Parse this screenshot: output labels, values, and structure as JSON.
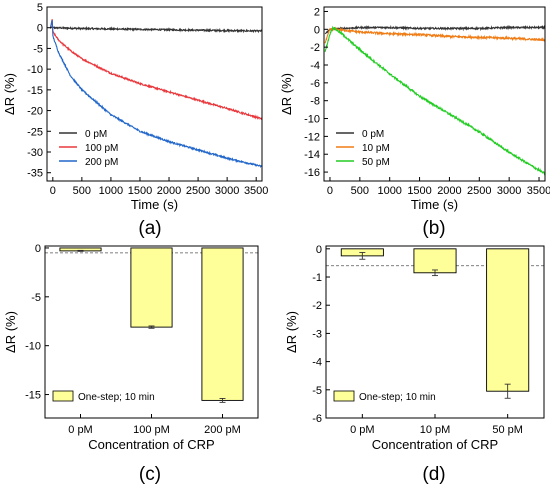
{
  "chart_data": [
    {
      "id": "a",
      "type": "line",
      "panel_label": "(a)",
      "xlabel": "Time (s)",
      "ylabel": "ΔR (%)",
      "xlim": [
        -100,
        3600
      ],
      "ylim": [
        -37,
        5
      ],
      "xticks": [
        0,
        500,
        1000,
        1500,
        2000,
        2500,
        3000,
        3500
      ],
      "yticks": [
        5,
        0,
        -5,
        -10,
        -15,
        -20,
        -25,
        -30,
        -35
      ],
      "legend_position": "bottom-left",
      "series": [
        {
          "name": "0 pM",
          "color": "#333333",
          "x": [
            -40,
            0,
            500,
            1000,
            1500,
            2000,
            2500,
            3000,
            3600
          ],
          "y": [
            0,
            0,
            -0.2,
            -0.3,
            -0.4,
            -0.5,
            -0.6,
            -0.7,
            -0.8
          ]
        },
        {
          "name": "100 pM",
          "color": "#e8383d",
          "x": [
            -40,
            -10,
            0,
            100,
            300,
            500,
            1000,
            1500,
            2000,
            2500,
            3000,
            3600
          ],
          "y": [
            0,
            2,
            -1,
            -3,
            -5.5,
            -7.5,
            -11,
            -13.5,
            -15.5,
            -17.5,
            -19.5,
            -22
          ]
        },
        {
          "name": "200 pM",
          "color": "#2166c9",
          "x": [
            -40,
            -10,
            0,
            100,
            300,
            500,
            1000,
            1500,
            2000,
            2500,
            3000,
            3600
          ],
          "y": [
            0,
            2,
            -2,
            -6,
            -11.5,
            -15,
            -21,
            -25,
            -27.5,
            -29.5,
            -31.5,
            -33.5
          ]
        }
      ]
    },
    {
      "id": "b",
      "type": "line",
      "panel_label": "(b)",
      "xlabel": "Time (s)",
      "ylabel": "ΔR (%)",
      "xlim": [
        -100,
        3600
      ],
      "ylim": [
        -17,
        2.5
      ],
      "xticks": [
        0,
        500,
        1000,
        1500,
        2000,
        2500,
        3000,
        3500
      ],
      "yticks": [
        2,
        0,
        -2,
        -4,
        -6,
        -8,
        -10,
        -12,
        -14,
        -16
      ],
      "legend_position": "bottom-left",
      "series": [
        {
          "name": "0 pM",
          "color": "#333333",
          "x": [
            -80,
            0,
            500,
            1000,
            1500,
            2000,
            2500,
            3000,
            3600
          ],
          "y": [
            -0.5,
            0,
            0.2,
            0.2,
            0.1,
            0.1,
            0.1,
            0.2,
            0.2
          ]
        },
        {
          "name": "10 pM",
          "color": "#f07c15",
          "x": [
            -80,
            0,
            100,
            500,
            1000,
            1500,
            2000,
            2500,
            3000,
            3600
          ],
          "y": [
            -1.5,
            0,
            0,
            -0.3,
            -0.5,
            -0.6,
            -0.8,
            -0.9,
            -1.0,
            -1.2
          ]
        },
        {
          "name": "50 pM",
          "color": "#22cc22",
          "x": [
            -80,
            0,
            50,
            200,
            500,
            1000,
            1500,
            2000,
            2500,
            3000,
            3600
          ],
          "y": [
            -2.5,
            -0.5,
            0.2,
            -0.5,
            -2.3,
            -5,
            -7.5,
            -9.5,
            -11.5,
            -13.8,
            -16.2
          ]
        }
      ]
    },
    {
      "id": "c",
      "type": "bar",
      "panel_label": "(c)",
      "xlabel": "Concentration of CRP",
      "ylabel": "ΔR (%)",
      "categories": [
        "0 pM",
        "100 pM",
        "200 pM"
      ],
      "values": [
        -0.3,
        -8.1,
        -15.6
      ],
      "errors": [
        0.05,
        0.12,
        0.2
      ],
      "reference_line": -0.5,
      "ylim": [
        -17.4,
        0.2
      ],
      "yticks": [
        0,
        -5,
        -10,
        -15
      ],
      "bar_color": "#ffff99",
      "legend": [
        "One-step; 10 min"
      ],
      "legend_position": "bottom-left"
    },
    {
      "id": "d",
      "type": "bar",
      "panel_label": "(d)",
      "xlabel": "Concentration of CRP",
      "ylabel": "ΔR (%)",
      "categories": [
        "0 pM",
        "10 pM",
        "50 pM"
      ],
      "values": [
        -0.25,
        -0.85,
        -5.05
      ],
      "errors": [
        0.12,
        0.1,
        0.25
      ],
      "reference_line": -0.6,
      "ylim": [
        -6,
        0.1
      ],
      "yticks": [
        0,
        -1,
        -2,
        -3,
        -4,
        -5,
        -6
      ],
      "bar_color": "#ffff99",
      "legend": [
        "One-step; 10 min"
      ],
      "legend_position": "bottom-left"
    }
  ]
}
